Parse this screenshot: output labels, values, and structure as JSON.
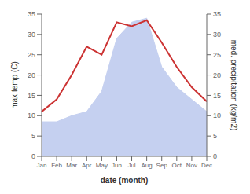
{
  "chart_data": {
    "type": "line",
    "xlabel": "date (month)",
    "ylabel": "max temp (C)",
    "y2label": "med. precipitation (kg/m2)",
    "categories": [
      "Jan",
      "Feb",
      "Mar",
      "Apr",
      "May",
      "Jun",
      "Jul",
      "Aug",
      "Sep",
      "Oct",
      "Nov",
      "Dec"
    ],
    "series": [
      {
        "type": "area",
        "color": "#c5d0f0",
        "values": [
          8.5,
          8.5,
          10,
          11,
          16,
          29,
          33,
          34,
          22,
          17,
          14,
          11
        ]
      },
      {
        "type": "line",
        "color": "#cc3333",
        "axis": "y2",
        "values": [
          11,
          14,
          20,
          27,
          25,
          33,
          32,
          33.5,
          28,
          22,
          17,
          13.5
        ]
      }
    ],
    "ylim": [
      0,
      35
    ],
    "yticks": [
      0,
      5,
      10,
      15,
      20,
      25,
      30,
      35
    ],
    "y2lim": [
      0,
      35
    ],
    "y2ticks": [
      0,
      5,
      10,
      15,
      20,
      25,
      30,
      35
    ]
  }
}
